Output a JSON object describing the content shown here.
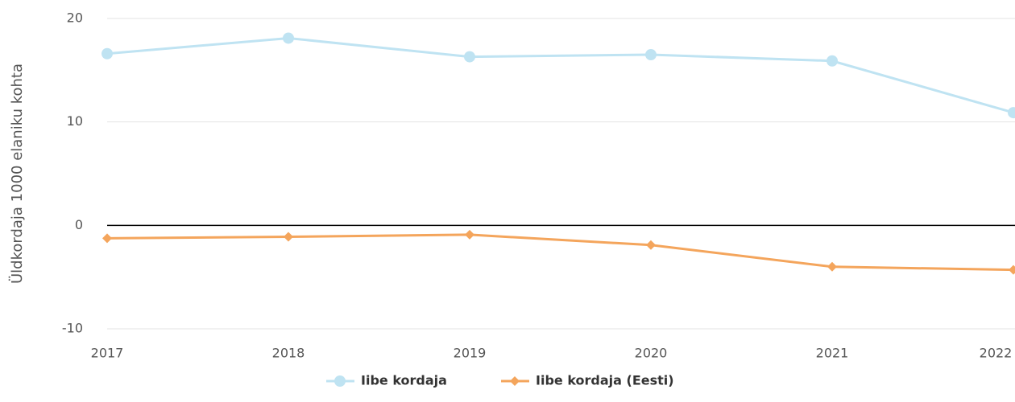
{
  "chart_data": {
    "type": "line",
    "y_label": "Üldkordaja 1000 elaniku kohta",
    "categories": [
      "2017",
      "2018",
      "2019",
      "2020",
      "2021",
      "2022"
    ],
    "series": [
      {
        "name": "Iibe kordaja",
        "color": "#bfe3f2",
        "marker": "circle",
        "values": [
          16.6,
          18.1,
          16.3,
          16.5,
          15.9,
          10.9
        ]
      },
      {
        "name": "Iibe kordaja (Eesti)",
        "color": "#f4a55c",
        "marker": "diamond",
        "values": [
          -1.25,
          -1.1,
          -0.9,
          -1.9,
          -4.0,
          -4.3
        ]
      }
    ],
    "ylim": [
      -10,
      20
    ],
    "yticks": [
      -10,
      0,
      10,
      20
    ],
    "grid": true
  }
}
